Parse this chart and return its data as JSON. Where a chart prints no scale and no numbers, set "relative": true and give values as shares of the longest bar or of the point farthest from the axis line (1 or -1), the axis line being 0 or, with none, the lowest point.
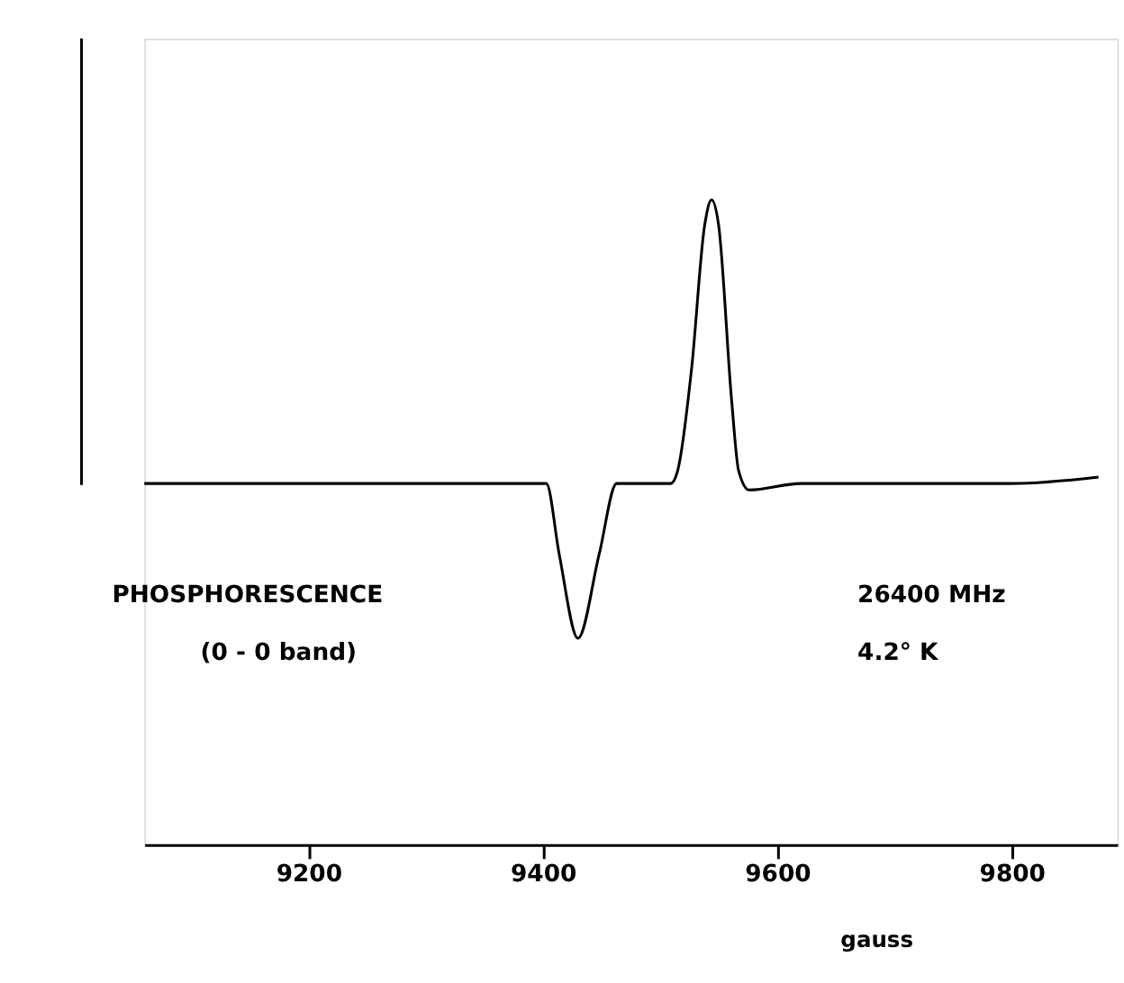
{
  "chart_data": {
    "type": "line",
    "relative": true,
    "xlabel": "gauss",
    "annotations": [
      "PHOSPHORESCENCE",
      "(0 - 0 band)",
      "26400  MHz",
      "4.2° K"
    ],
    "xlim": [
      9060,
      9890
    ],
    "xticks": [
      9200,
      9400,
      9600,
      9800
    ],
    "tick_labels": "x",
    "grid": false,
    "legend": false,
    "series": [
      {
        "color": "#000000",
        "line_style": "solid",
        "marker": "none",
        "x": [
          9060,
          9150,
          9250,
          9350,
          9403,
          9414,
          9430,
          9448,
          9463,
          9509,
          9515,
          9527,
          9538,
          9544,
          9550,
          9561,
          9567,
          9576,
          9620,
          9700,
          9800,
          9874
        ],
        "values": [
          0.56,
          0.56,
          0.56,
          0.56,
          0.56,
          0.45,
          0.32,
          0.45,
          0.56,
          0.56,
          0.58,
          0.74,
          0.96,
          1,
          0.96,
          0.69,
          0.58,
          0.55,
          0.56,
          0.56,
          0.56,
          0.57
        ]
      }
    ]
  }
}
